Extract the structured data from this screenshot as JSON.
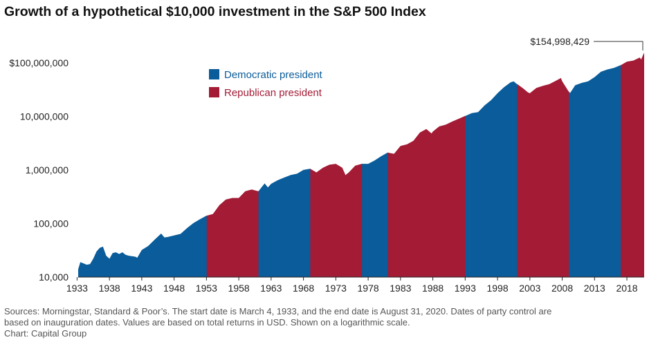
{
  "chart_data": {
    "type": "area",
    "title": "Growth of a hypothetical $10,000 investment in the S&P 500 Index",
    "xlabel": "",
    "ylabel": "",
    "yscale": "log",
    "xlim": [
      1933.17,
      2020.67
    ],
    "ylim": [
      10000,
      160000000
    ],
    "y_ticks": [
      10000,
      100000,
      1000000,
      10000000,
      100000000
    ],
    "y_tick_labels": [
      "10,000",
      "100,000",
      "1,000,000",
      "10,000,000",
      "$100,000,000"
    ],
    "x_ticks": [
      1933,
      1938,
      1943,
      1948,
      1953,
      1958,
      1963,
      1968,
      1973,
      1978,
      1983,
      1988,
      1993,
      1998,
      2003,
      2008,
      2013,
      2018
    ],
    "legend": [
      {
        "label": "Democratic president",
        "color": "#0a5c9a"
      },
      {
        "label": "Republican president",
        "color": "#a31b35"
      }
    ],
    "legend_position": "top-left",
    "end_value_label": "$154,998,429",
    "periods": [
      {
        "party": "D",
        "start": 1933.17,
        "end": 1953.05
      },
      {
        "party": "R",
        "start": 1953.05,
        "end": 1961.05
      },
      {
        "party": "D",
        "start": 1961.05,
        "end": 1969.05
      },
      {
        "party": "R",
        "start": 1969.05,
        "end": 1977.05
      },
      {
        "party": "D",
        "start": 1977.05,
        "end": 1981.05
      },
      {
        "party": "R",
        "start": 1981.05,
        "end": 1993.05
      },
      {
        "party": "D",
        "start": 1993.05,
        "end": 2001.05
      },
      {
        "party": "R",
        "start": 2001.05,
        "end": 2009.05
      },
      {
        "party": "D",
        "start": 2009.05,
        "end": 2017.05
      },
      {
        "party": "R",
        "start": 2017.05,
        "end": 2020.67
      }
    ],
    "series": [
      {
        "name": "S&P 500 growth of $10,000",
        "x": [
          1933.17,
          1933.5,
          1934.0,
          1934.5,
          1935.0,
          1935.5,
          1936.0,
          1936.5,
          1937.0,
          1937.5,
          1938.0,
          1938.5,
          1939.0,
          1939.5,
          1940.0,
          1940.5,
          1941.0,
          1942.0,
          1942.3,
          1943.0,
          1944.0,
          1945.0,
          1946.0,
          1946.5,
          1947.0,
          1948.0,
          1949.0,
          1950.0,
          1951.0,
          1952.0,
          1953.0,
          1953.05,
          1954.0,
          1955.0,
          1956.0,
          1957.0,
          1958.0,
          1959.0,
          1960.0,
          1961.0,
          1961.05,
          1962.0,
          1962.5,
          1963.0,
          1964.0,
          1965.0,
          1966.0,
          1967.0,
          1968.0,
          1969.0,
          1969.05,
          1970.0,
          1971.0,
          1972.0,
          1973.0,
          1974.0,
          1974.5,
          1975.0,
          1976.0,
          1977.0,
          1977.05,
          1978.0,
          1979.0,
          1980.0,
          1981.0,
          1981.05,
          1982.0,
          1983.0,
          1984.0,
          1985.0,
          1986.0,
          1987.0,
          1987.8,
          1988.0,
          1989.0,
          1990.0,
          1991.0,
          1992.0,
          1993.0,
          1993.05,
          1994.0,
          1995.0,
          1996.0,
          1997.0,
          1998.0,
          1999.0,
          2000.0,
          2000.5,
          2001.0,
          2001.05,
          2002.0,
          2002.7,
          2003.0,
          2004.0,
          2005.0,
          2006.0,
          2007.0,
          2007.8,
          2008.0,
          2009.0,
          2009.05,
          2009.2,
          2010.0,
          2011.0,
          2012.0,
          2013.0,
          2014.0,
          2015.0,
          2016.0,
          2017.0,
          2017.05,
          2018.0,
          2019.0,
          2020.0,
          2020.2,
          2020.67
        ],
        "values": [
          14000,
          19000,
          18000,
          17000,
          17500,
          22000,
          30000,
          35000,
          37000,
          25000,
          22000,
          28000,
          29000,
          27000,
          29000,
          26000,
          25000,
          24000,
          23000,
          32000,
          38000,
          50000,
          65000,
          55000,
          56000,
          60000,
          64000,
          82000,
          102000,
          120000,
          140000,
          140000,
          150000,
          220000,
          280000,
          300000,
          300000,
          400000,
          430000,
          400000,
          400000,
          560000,
          470000,
          550000,
          640000,
          720000,
          800000,
          850000,
          1000000,
          1050000,
          1050000,
          900000,
          1100000,
          1250000,
          1300000,
          1100000,
          800000,
          900000,
          1200000,
          1300000,
          1300000,
          1300000,
          1500000,
          1800000,
          2100000,
          2100000,
          2000000,
          2800000,
          3000000,
          3500000,
          5000000,
          5800000,
          4800000,
          5200000,
          6500000,
          7000000,
          8000000,
          9000000,
          10200000,
          10200000,
          11500000,
          12000000,
          16000000,
          20000000,
          27000000,
          35000000,
          43000000,
          45000000,
          40000000,
          40000000,
          33000000,
          28000000,
          27000000,
          34000000,
          37000000,
          40000000,
          46000000,
          52000000,
          45000000,
          29000000,
          29000000,
          27000000,
          38000000,
          42000000,
          45000000,
          54000000,
          68000000,
          75000000,
          80000000,
          90000000,
          90000000,
          105000000,
          110000000,
          125000000,
          115000000,
          154998429
        ]
      }
    ]
  },
  "footer": {
    "sources_line1": "Sources: Morningstar, Standard & Poor’s. The start date is March 4, 1933, and the end date is August 31, 2020. Dates of party control are",
    "sources_line2": "based on inauguration dates. Values are based on total returns in USD. Shown on a logarithmic scale.",
    "credit": "Chart: Capital Group"
  }
}
